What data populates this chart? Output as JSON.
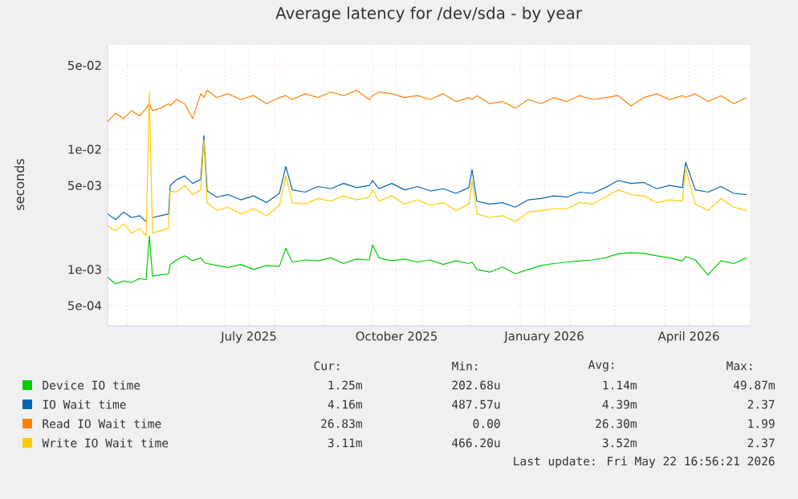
{
  "chart_data": {
    "type": "line",
    "title": "Average latency for /dev/sda - by year",
    "ylabel": "seconds",
    "log": "y",
    "grid": true,
    "legend": "bottom",
    "xlim": [
      "2025-04-19",
      "2026-05-24"
    ],
    "ylim": [
      0.00034,
      0.074
    ],
    "xticks": [
      {
        "value": "2025-05-01",
        "label": null
      },
      {
        "value": "2025-06-01",
        "label": null
      },
      {
        "value": "2025-07-01",
        "label": null
      },
      {
        "value": "2025-07-16",
        "label": "July 2025"
      },
      {
        "value": "2025-08-01",
        "label": null
      },
      {
        "value": "2025-09-01",
        "label": null
      },
      {
        "value": "2025-10-01",
        "label": null
      },
      {
        "value": "2025-10-16",
        "label": "October 2025"
      },
      {
        "value": "2025-11-01",
        "label": null
      },
      {
        "value": "2025-12-01",
        "label": null
      },
      {
        "value": "2026-01-01",
        "label": null
      },
      {
        "value": "2026-01-16",
        "label": "January 2026"
      },
      {
        "value": "2026-02-01",
        "label": null
      },
      {
        "value": "2026-03-01",
        "label": null
      },
      {
        "value": "2026-04-01",
        "label": null
      },
      {
        "value": "2026-04-16",
        "label": "April 2026"
      },
      {
        "value": "2026-05-01",
        "label": null
      }
    ],
    "yticks": [
      {
        "value": 0.0005,
        "label": "5e-04"
      },
      {
        "value": 0.001,
        "label": "1e-03"
      },
      {
        "value": 0.005,
        "label": "5e-03"
      },
      {
        "value": 0.01,
        "label": "1e-02"
      },
      {
        "value": 0.05,
        "label": "5e-02"
      }
    ],
    "x": [
      "2025-04-19",
      "2025-04-24",
      "2025-04-29",
      "2025-05-04",
      "2025-05-09",
      "2025-05-13",
      "2025-05-15",
      "2025-05-17",
      "2025-05-22",
      "2025-05-27",
      "2025-05-28",
      "2025-06-01",
      "2025-06-06",
      "2025-06-11",
      "2025-06-16",
      "2025-06-18",
      "2025-06-20",
      "2025-06-26",
      "2025-07-03",
      "2025-07-11",
      "2025-07-19",
      "2025-07-27",
      "2025-08-04",
      "2025-08-08",
      "2025-08-12",
      "2025-08-20",
      "2025-08-28",
      "2025-09-05",
      "2025-09-13",
      "2025-09-21",
      "2025-09-29",
      "2025-10-01",
      "2025-10-05",
      "2025-10-13",
      "2025-10-21",
      "2025-10-29",
      "2025-11-06",
      "2025-11-14",
      "2025-11-22",
      "2025-11-30",
      "2025-12-02",
      "2025-12-05",
      "2025-12-13",
      "2025-12-21",
      "2025-12-29",
      "2026-01-06",
      "2026-01-14",
      "2026-01-22",
      "2026-01-30",
      "2026-02-07",
      "2026-02-15",
      "2026-02-23",
      "2026-03-03",
      "2026-03-11",
      "2026-03-19",
      "2026-03-27",
      "2026-04-04",
      "2026-04-12",
      "2026-04-14",
      "2026-04-20",
      "2026-04-28",
      "2026-05-06",
      "2026-05-14",
      "2026-05-22"
    ],
    "series": [
      {
        "name": "Device IO time",
        "color": "#00cc00",
        "values": [
          0.00086,
          0.00076,
          0.0008,
          0.00078,
          0.00084,
          0.00082,
          0.0019,
          0.00088,
          0.0009,
          0.00092,
          0.0011,
          0.0012,
          0.0013,
          0.00118,
          0.00125,
          0.00115,
          0.00112,
          0.00108,
          0.00104,
          0.0011,
          0.001,
          0.00108,
          0.00106,
          0.0015,
          0.00115,
          0.0012,
          0.00118,
          0.00125,
          0.00112,
          0.00122,
          0.0012,
          0.0016,
          0.00125,
          0.00118,
          0.00122,
          0.00115,
          0.0012,
          0.0011,
          0.00118,
          0.00112,
          0.00115,
          0.001,
          0.00095,
          0.00105,
          0.00092,
          0.001,
          0.00108,
          0.00112,
          0.00115,
          0.00118,
          0.0012,
          0.00125,
          0.00135,
          0.00138,
          0.00136,
          0.0013,
          0.00125,
          0.00118,
          0.00128,
          0.0012,
          0.0009,
          0.00118,
          0.00112,
          0.00125
        ]
      },
      {
        "name": "IO Wait time",
        "color": "#0066b3",
        "values": [
          0.0029,
          0.0026,
          0.003,
          0.0027,
          0.0028,
          0.0025,
          null,
          0.0027,
          0.0028,
          0.0029,
          0.005,
          0.0056,
          0.006,
          0.0052,
          0.0056,
          0.013,
          0.0045,
          0.004,
          0.0042,
          0.0038,
          0.0041,
          0.0036,
          0.0043,
          0.0072,
          0.0046,
          0.0044,
          0.0049,
          0.0047,
          0.0052,
          0.0048,
          0.005,
          0.0055,
          0.0047,
          0.0052,
          0.0046,
          0.0049,
          0.0045,
          0.0047,
          0.0043,
          0.0048,
          0.0068,
          0.0037,
          0.0035,
          0.0036,
          0.0033,
          0.0038,
          0.0039,
          0.0041,
          0.004,
          0.0044,
          0.0043,
          0.0048,
          0.0055,
          0.0052,
          0.0053,
          0.0047,
          0.005,
          0.0048,
          0.0078,
          0.0046,
          0.0044,
          0.0049,
          0.0043,
          0.0042
        ]
      },
      {
        "name": "Read IO Wait time",
        "color": "#ff8000",
        "values": [
          0.017,
          0.02,
          0.018,
          0.021,
          0.019,
          0.022,
          0.024,
          0.021,
          0.022,
          0.024,
          0.023,
          0.026,
          0.024,
          0.018,
          0.029,
          0.027,
          0.031,
          0.027,
          0.029,
          0.026,
          0.028,
          0.024,
          0.027,
          0.028,
          0.026,
          0.029,
          0.027,
          0.03,
          0.028,
          0.031,
          0.026,
          0.028,
          0.03,
          0.029,
          0.027,
          0.028,
          0.026,
          0.029,
          0.025,
          0.027,
          0.026,
          0.028,
          0.024,
          0.025,
          0.022,
          0.026,
          0.024,
          0.027,
          0.025,
          0.028,
          0.026,
          0.027,
          0.028,
          0.023,
          0.027,
          0.029,
          0.026,
          0.028,
          0.027,
          0.029,
          0.025,
          0.028,
          0.024,
          0.027
        ]
      },
      {
        "name": "Write IO Wait time",
        "color": "#ffcc00",
        "values": [
          0.0023,
          0.0021,
          0.0024,
          0.002,
          0.0022,
          0.0019,
          0.03,
          0.002,
          0.0021,
          0.0022,
          0.0045,
          0.0044,
          0.005,
          0.0042,
          0.0046,
          0.012,
          0.0036,
          0.0031,
          0.0033,
          0.0029,
          0.0032,
          0.0028,
          0.0034,
          0.006,
          0.0036,
          0.0035,
          0.0039,
          0.0037,
          0.0041,
          0.0038,
          0.004,
          0.0046,
          0.0037,
          0.0041,
          0.0035,
          0.0038,
          0.0034,
          0.0036,
          0.0031,
          0.0035,
          0.0055,
          0.0029,
          0.0027,
          0.0028,
          0.0025,
          0.003,
          0.0031,
          0.0032,
          0.0032,
          0.0036,
          0.0035,
          0.004,
          0.0046,
          0.0042,
          0.0041,
          0.0036,
          0.0038,
          0.0037,
          0.007,
          0.0035,
          0.0031,
          0.0039,
          0.0033,
          0.0031
        ]
      }
    ],
    "annotations": [
      "Cur:",
      "Min:",
      "Avg:",
      "Max:",
      "1.25m",
      "202.68u",
      "1.14m",
      "49.87m",
      "4.16m",
      "487.57u",
      "4.39m",
      "2.37",
      "26.83m",
      "0.00",
      "26.30m",
      "1.99",
      "3.11m",
      "466.20u",
      "3.52m",
      "2.37",
      "Last update: Fri May 22 16:56:21 2026"
    ]
  }
}
